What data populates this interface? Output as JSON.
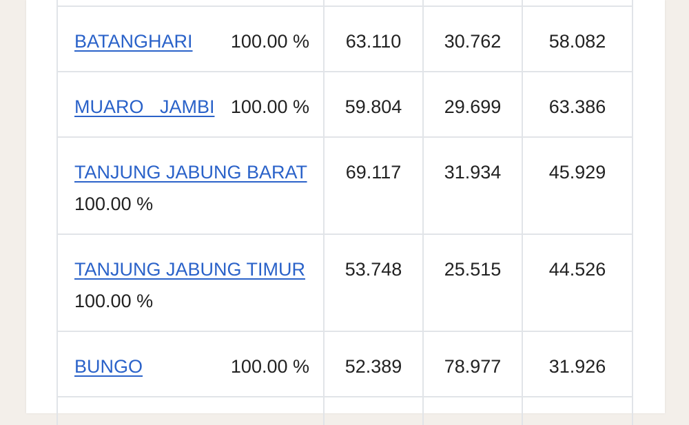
{
  "table": {
    "rows": [
      [
        "BATANGHARI",
        "100.00 %",
        "63.110",
        "30.762",
        "58.082"
      ],
      [
        "MUARO JAMBI",
        "100.00 %",
        "59.804",
        "29.699",
        "63.386"
      ],
      [
        "TANJUNG JABUNG BARAT",
        "100.00 %",
        "69.117",
        "31.934",
        "45.929"
      ],
      [
        "TANJUNG JABUNG TIMUR",
        "100.00 %",
        "53.748",
        "25.515",
        "44.526"
      ],
      [
        "BUNGO",
        "100.00 %",
        "52.389",
        "78.977",
        "31.926"
      ]
    ]
  }
}
